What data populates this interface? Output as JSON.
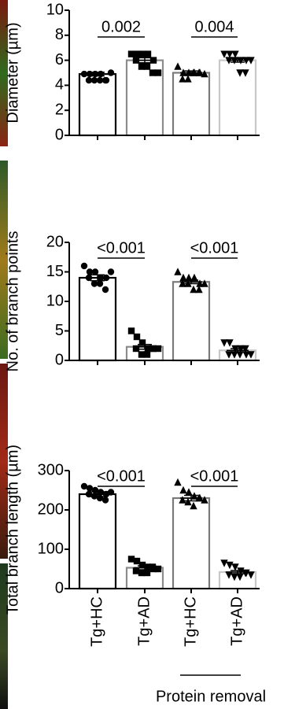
{
  "chart_data": [
    {
      "type": "bar",
      "y_label": "Diameter (µm)",
      "values": [
        4.9,
        6.0,
        5.0,
        6.0
      ],
      "errors": [
        0.15,
        0.2,
        0.15,
        0.15
      ],
      "colors": [
        "#000000",
        "#8c8c8c",
        "#7a7a7a",
        "#c8c8c8"
      ],
      "markers": [
        "circle",
        "square",
        "triangle-up",
        "triangle-down"
      ],
      "points": [
        [
          4.9,
          4.9,
          4.9,
          4.9,
          4.4,
          4.4,
          4.4,
          4.4,
          4.4,
          5.0
        ],
        [
          6.5,
          6.5,
          6.5,
          6.5,
          6.0,
          6.0,
          5.5,
          5.5,
          5.0,
          5.0
        ],
        [
          5.5,
          5.0,
          5.0,
          5.0,
          5.0,
          4.5,
          4.5,
          5.0,
          5.0,
          4.9
        ],
        [
          6.5,
          6.5,
          6.5,
          6.0,
          6.0,
          6.0,
          6.0,
          5.0,
          5.0,
          6.0
        ]
      ],
      "annotations": [
        {
          "text": "0.002",
          "bars": [
            0,
            1
          ]
        },
        {
          "text": "0.004",
          "bars": [
            2,
            3
          ]
        }
      ],
      "ylim": [
        0,
        10
      ],
      "yticks": [
        0,
        2,
        4,
        6,
        8,
        10
      ]
    },
    {
      "type": "bar",
      "y_label": "No. of branch points",
      "values": [
        14.0,
        2.3,
        13.3,
        1.7
      ],
      "errors": [
        0.5,
        0.4,
        0.3,
        0.3
      ],
      "colors": [
        "#000000",
        "#8c8c8c",
        "#7a7a7a",
        "#c8c8c8"
      ],
      "markers": [
        "circle",
        "square",
        "triangle-up",
        "triangle-down"
      ],
      "points": [
        [
          16,
          15,
          15,
          14,
          14,
          14,
          13,
          13,
          12,
          15
        ],
        [
          5,
          4,
          3,
          2,
          2,
          2,
          1,
          1,
          2,
          2
        ],
        [
          15,
          14,
          14,
          14,
          13,
          13,
          13,
          12,
          12,
          13
        ],
        [
          3,
          3,
          2,
          2,
          1,
          1,
          1,
          1,
          2,
          1
        ]
      ],
      "annotations": [
        {
          "text": "<0.001",
          "bars": [
            0,
            1
          ]
        },
        {
          "text": "<0.001",
          "bars": [
            2,
            3
          ]
        }
      ],
      "ylim": [
        0,
        20
      ],
      "yticks": [
        0,
        5,
        10,
        15,
        20
      ]
    },
    {
      "type": "bar",
      "y_label": "Total branch length (µm)",
      "categories": [
        "Tg+HC",
        "Tg+AD",
        "Tg+HC",
        "Tg+AD"
      ],
      "group_label": "Protein removal",
      "group_bars": [
        2,
        3
      ],
      "values": [
        240,
        53,
        230,
        42
      ],
      "errors": [
        6,
        5,
        7,
        4
      ],
      "colors": [
        "#000000",
        "#8c8c8c",
        "#7a7a7a",
        "#c8c8c8"
      ],
      "markers": [
        "circle",
        "square",
        "triangle-up",
        "triangle-down"
      ],
      "points": [
        [
          260,
          255,
          250,
          245,
          240,
          240,
          235,
          230,
          225,
          245
        ],
        [
          75,
          70,
          60,
          55,
          50,
          45,
          40,
          40,
          55,
          50
        ],
        [
          270,
          250,
          245,
          235,
          230,
          225,
          220,
          210,
          230,
          225
        ],
        [
          65,
          60,
          55,
          45,
          40,
          35,
          30,
          30,
          40,
          35
        ]
      ],
      "annotations": [
        {
          "text": "<0.001",
          "bars": [
            0,
            1
          ]
        },
        {
          "text": "<0.001",
          "bars": [
            2,
            3
          ]
        }
      ],
      "ylim": [
        0,
        300
      ],
      "yticks": [
        0,
        100,
        200,
        300
      ]
    }
  ]
}
